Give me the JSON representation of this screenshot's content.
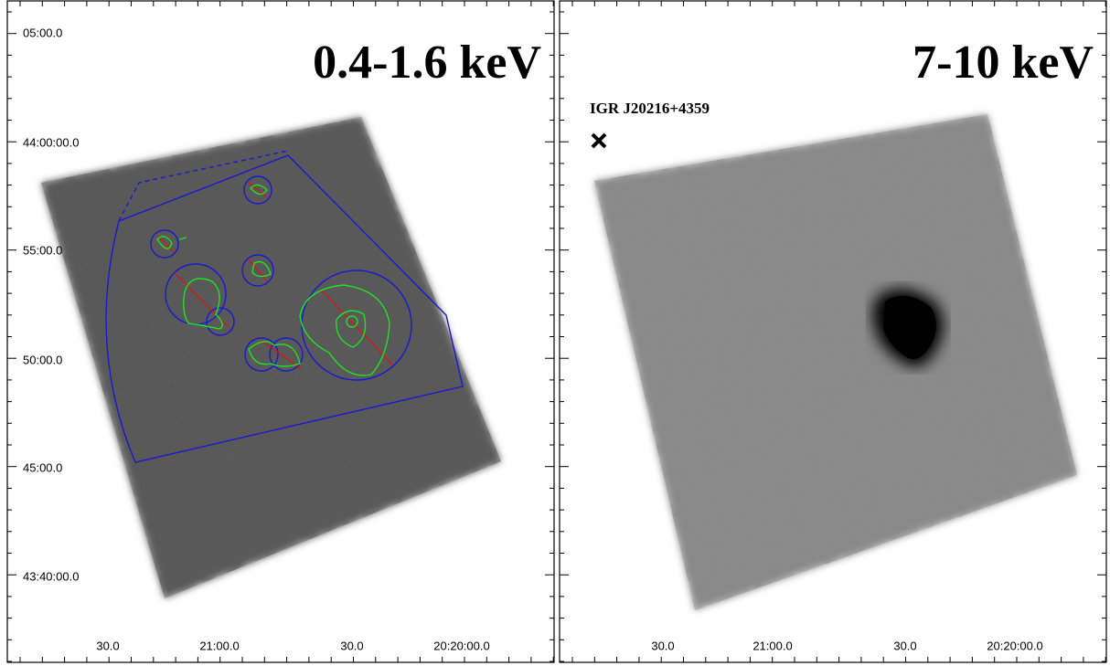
{
  "y_labels": [
    "05:00.0",
    "44:00:00.0",
    "55:00.0",
    "50:00.0",
    "45:00.0",
    "43:40:00.0"
  ],
  "panels": [
    {
      "title": "0.4-1.6 keV",
      "x_labels": [
        "30.0",
        "21:00.0",
        "30.0",
        "20:20:00.0"
      ]
    },
    {
      "title": "7-10 keV",
      "source_label": "IGR J20216+4359",
      "x_labels": [
        "30.0",
        "21:00.0",
        "30.0",
        "20:20:00.0"
      ]
    }
  ]
}
